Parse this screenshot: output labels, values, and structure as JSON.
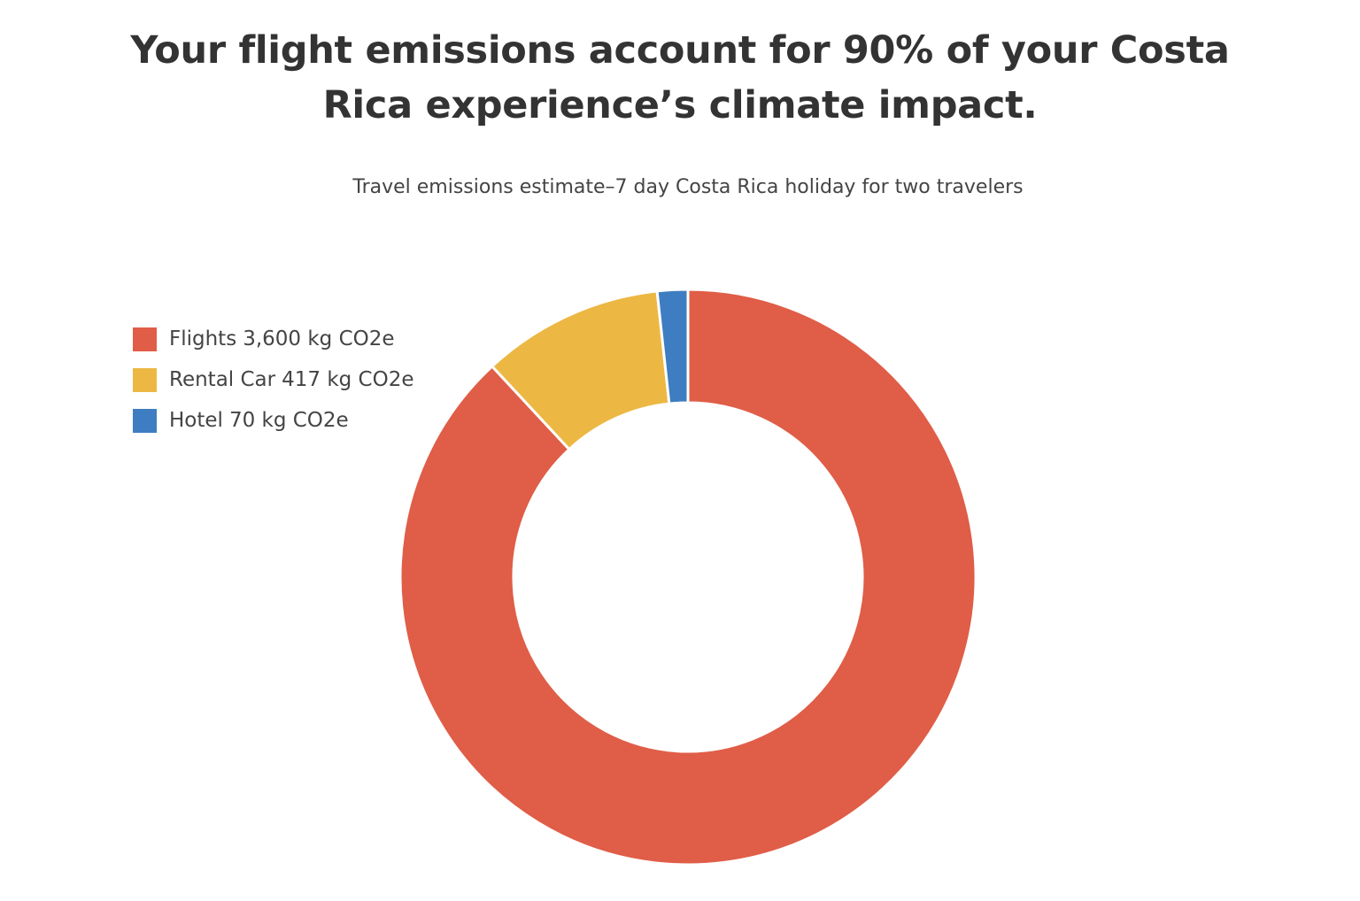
{
  "chart_data": {
    "type": "donut",
    "title": "Your flight emissions account for 90% of your Costa Rica experience’s climate impact.",
    "subtitle": "Travel emissions estimate–7 day Costa Rica holiday for two travelers",
    "categories": [
      "Flights",
      "Rental Car",
      "Hotel"
    ],
    "values": [
      3600,
      417,
      70
    ],
    "value_labels": [
      "3,600 kg CO2e",
      "417 kg CO2e",
      "70 kg CO2e"
    ],
    "colors": [
      "#e05d47",
      "#ecb843",
      "#3e7dc1"
    ],
    "legend": "top-left"
  }
}
